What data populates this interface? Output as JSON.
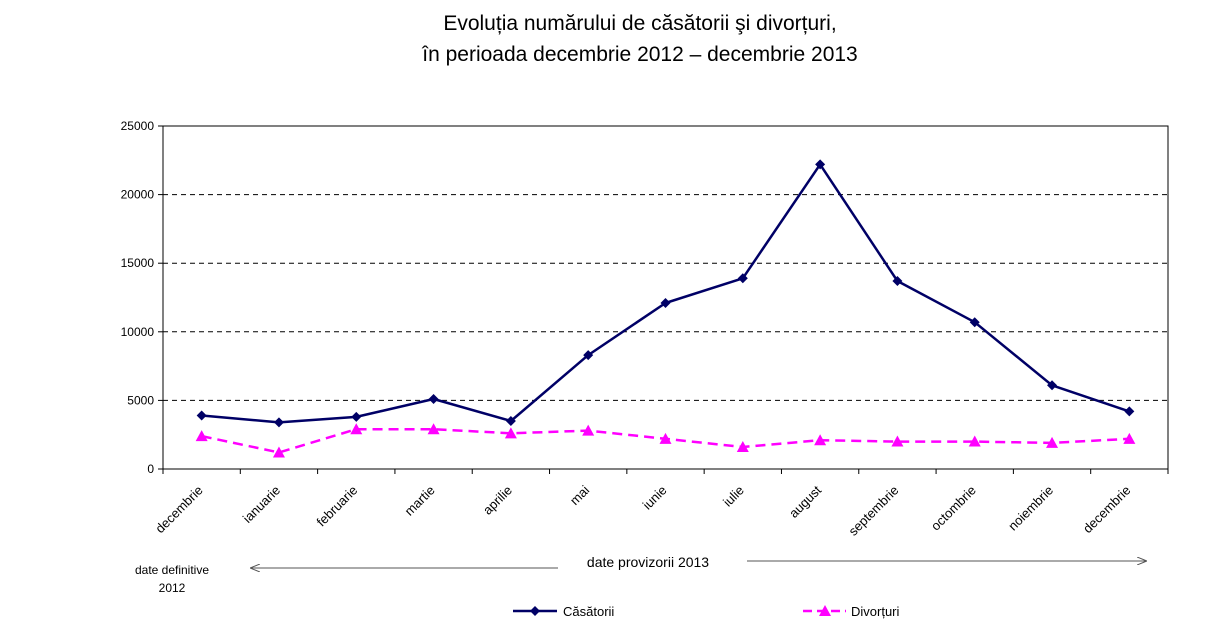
{
  "chart_data": {
    "type": "line",
    "title": [
      "Evoluția numărului de căsătorii şi divorțuri,",
      "în perioada decembrie 2012 – decembrie 2013"
    ],
    "categories": [
      "decembrie",
      "ianuarie",
      "februarie",
      "martie",
      "aprilie",
      "mai",
      "iunie",
      "iulie",
      "august",
      "septembrie",
      "octombrie",
      "noiembrie",
      "decembrie"
    ],
    "series": [
      {
        "name": "Căsătorii",
        "color": "#000066",
        "marker": "diamond",
        "dash": "solid",
        "values": [
          3900,
          3400,
          3800,
          5100,
          3500,
          8300,
          12100,
          13900,
          22200,
          13700,
          10700,
          6100,
          4200
        ]
      },
      {
        "name": "Divorțuri",
        "color": "#ff00ff",
        "marker": "triangle",
        "dash": "dashed",
        "values": [
          2400,
          1200,
          2900,
          2900,
          2600,
          2800,
          2200,
          1600,
          2100,
          2000,
          2000,
          1900,
          2200
        ]
      }
    ],
    "yticks": [
      0,
      5000,
      10000,
      15000,
      20000,
      25000
    ],
    "ylim": [
      0,
      25000
    ],
    "grid": "dashed horizontal",
    "legend": "bottom"
  },
  "annotations": {
    "definitive": [
      "date definitive",
      "2012"
    ],
    "provisional": "date provizorii 2013"
  }
}
